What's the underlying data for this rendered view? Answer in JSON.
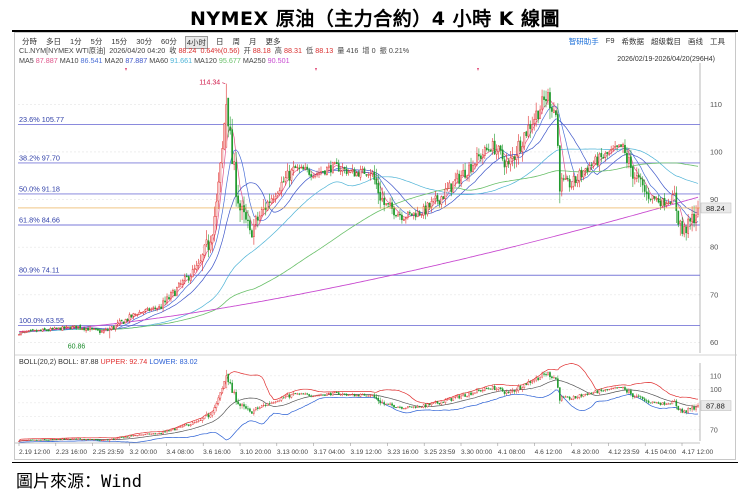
{
  "title": "NYMEX 原油（主力合約）4 小時 K 線圖",
  "source": "圖片來源：Wind",
  "toolbar": {
    "timeframes": [
      "分時",
      "多日",
      "1分",
      "5分",
      "15分",
      "30分",
      "60分",
      "4小时",
      "日",
      "周",
      "月",
      "更多"
    ],
    "active_timeframe": "4小时",
    "tools": [
      "智研助手",
      "F9",
      "希数据",
      "超级载目",
      "画线",
      "工具"
    ]
  },
  "info": {
    "symbol": "CL.NYM[NYMEX WTI原油]",
    "datetime": "2026/04/20 04:20",
    "close_label": "收",
    "close": "88.24",
    "change": "0.64%(0.56)",
    "open_label": "开",
    "open": "88.18",
    "high_label": "高",
    "high": "88.31",
    "low_label": "低",
    "low": "88.13",
    "vol_label": "量",
    "volume": "416",
    "oi_label": "增",
    "oi_change": "0",
    "amp_label": "振",
    "amplitude": "0.21%"
  },
  "ma_legend": [
    {
      "label": "MA5",
      "value": "87.887",
      "color": "#e0558b"
    },
    {
      "label": "MA10",
      "value": "86.541",
      "color": "#4a6fd6"
    },
    {
      "label": "MA20",
      "value": "87.887",
      "color": "#3e56c9"
    },
    {
      "label": "MA60",
      "value": "91.661",
      "color": "#4db3d6"
    },
    {
      "label": "MA120",
      "value": "95.677",
      "color": "#6ac06a"
    },
    {
      "label": "MA250",
      "value": "90.501",
      "color": "#c84ad0"
    }
  ],
  "date_range": "2026/02/19-2026/04/20(296H4)",
  "boll": {
    "label": "BOLL(20,2)",
    "mid_label": "BOLL",
    "mid": "87.88",
    "upper_label": "UPPER",
    "upper": "92.74",
    "lower_label": "LOWER",
    "lower": "83.02"
  },
  "colors": {
    "up": "#e03030",
    "down": "#1f9a2c",
    "fib": "#7a7ad8",
    "last": "#e8a23a"
  },
  "chart_data": {
    "type": "candlestick",
    "y_axis": {
      "ticks": [
        60,
        70,
        80,
        90,
        100,
        110
      ],
      "ylim": [
        58.2,
        117
      ]
    },
    "x_ticks": [
      "2.19 12:00",
      "2.23 16:00",
      "2.25 23:59",
      "3.2 00:00",
      "3.4 08:00",
      "3.6 16:00",
      "3.10 20:00",
      "3.13 00:00",
      "3.17 04:00",
      "3.19 12:00",
      "3.23 16:00",
      "3.25 23:59",
      "3.30 00:00",
      "4.1 08:00",
      "4.6 12:00",
      "4.8 20:00",
      "4.12 23:59",
      "4.15 04:00",
      "4.17 12:00"
    ],
    "fib_levels": [
      {
        "pct": "23.6%",
        "value": 105.77
      },
      {
        "pct": "38.2%",
        "value": 97.7
      },
      {
        "pct": "50.0%",
        "value": 91.18
      },
      {
        "pct": "61.8%",
        "value": 84.66
      },
      {
        "pct": "80.9%",
        "value": 74.11
      },
      {
        "pct": "100.0%",
        "value": 63.55
      }
    ],
    "annotations": {
      "high": 114.34,
      "low": 60.86
    },
    "last_price": 88.24,
    "boll_ticks": [
      70,
      80,
      90,
      100,
      110
    ],
    "boll_ylim": [
      64.7,
      116.5
    ],
    "boll_last": 87.88,
    "anchors": [
      [
        0,
        62.0
      ],
      [
        30,
        63.3
      ],
      [
        42,
        62.2
      ],
      [
        48,
        63.2
      ],
      [
        60,
        66.2
      ],
      [
        72,
        67.5
      ],
      [
        84,
        73.0
      ],
      [
        92,
        76.5
      ],
      [
        96,
        81.0
      ],
      [
        100,
        88.5
      ],
      [
        103,
        100.0
      ],
      [
        105,
        112.0
      ],
      [
        108,
        98.0
      ],
      [
        112,
        88.0
      ],
      [
        117,
        83.0
      ],
      [
        122,
        86.5
      ],
      [
        130,
        92.0
      ],
      [
        140,
        96.5
      ],
      [
        150,
        95.5
      ],
      [
        160,
        97.0
      ],
      [
        170,
        95.5
      ],
      [
        178,
        96.0
      ],
      [
        185,
        89.0
      ],
      [
        195,
        86.5
      ],
      [
        205,
        87.5
      ],
      [
        215,
        91.0
      ],
      [
        225,
        95.5
      ],
      [
        232,
        98.5
      ],
      [
        240,
        101.5
      ],
      [
        248,
        97.0
      ],
      [
        255,
        103.0
      ],
      [
        262,
        108.0
      ],
      [
        268,
        112.0
      ],
      [
        272,
        108.0
      ],
      [
        274,
        94.0
      ],
      [
        280,
        93.0
      ],
      [
        287,
        96.5
      ],
      [
        296,
        99.0
      ],
      [
        305,
        101.0
      ],
      [
        312,
        95.0
      ],
      [
        318,
        91.0
      ],
      [
        326,
        89.5
      ],
      [
        332,
        90.3
      ],
      [
        336,
        83.0
      ],
      [
        340,
        85.0
      ],
      [
        344,
        88.24
      ]
    ]
  }
}
